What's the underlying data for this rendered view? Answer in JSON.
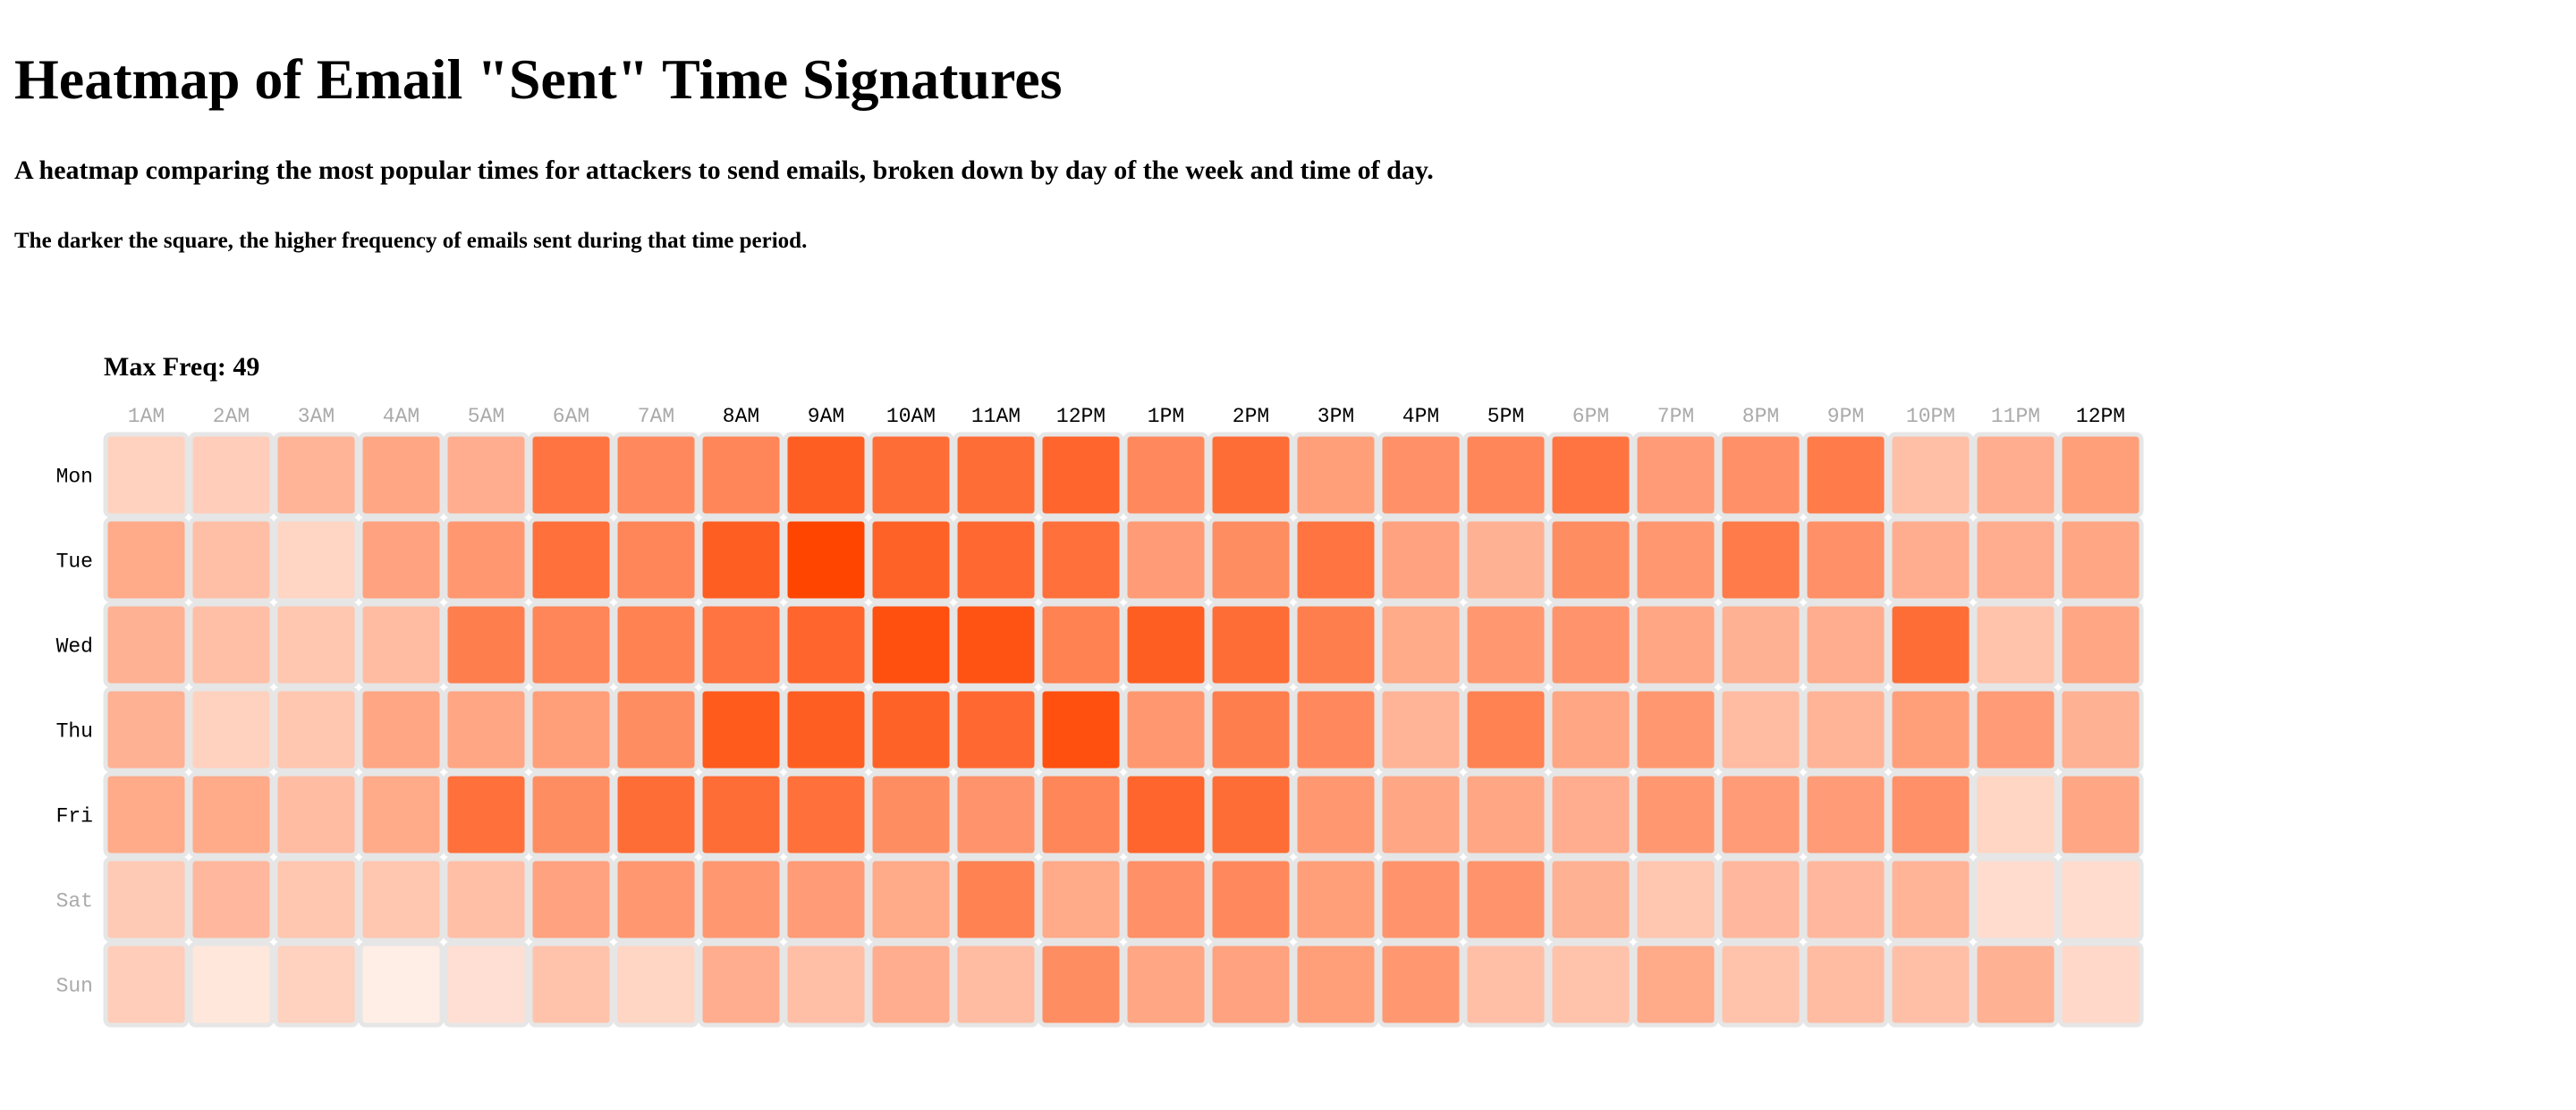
{
  "page": {
    "title": "Heatmap of Email \"Sent\" Time Signatures",
    "subtitle": "A heatmap comparing the most popular times for attackers to send emails, broken down by day of the week and time of day.",
    "note": "The darker the square, the higher frequency of emails sent during that time period.",
    "max_freq_label": "Max Freq: 49"
  },
  "chart_data": {
    "type": "heatmap",
    "x_categories": [
      "1AM",
      "2AM",
      "3AM",
      "4AM",
      "5AM",
      "6AM",
      "7AM",
      "8AM",
      "9AM",
      "10AM",
      "11AM",
      "12PM",
      "1PM",
      "2PM",
      "3PM",
      "4PM",
      "5PM",
      "6PM",
      "7PM",
      "8PM",
      "9PM",
      "10PM",
      "11PM",
      "12PM"
    ],
    "y_categories": [
      "Mon",
      "Tue",
      "Wed",
      "Thu",
      "Fri",
      "Sat",
      "Sun"
    ],
    "x_highlighted": [
      "8AM",
      "9AM",
      "10AM",
      "11AM",
      "12PM",
      "1PM",
      "2PM",
      "3PM",
      "4PM",
      "5PM"
    ],
    "y_highlighted": [
      "Mon",
      "Tue",
      "Wed",
      "Thu",
      "Fri"
    ],
    "max_value": 49,
    "values": [
      [
        10,
        11,
        18,
        22,
        20,
        36,
        30,
        31,
        42,
        38,
        38,
        40,
        30,
        38,
        24,
        28,
        31,
        36,
        25,
        28,
        34,
        15,
        20,
        24
      ],
      [
        21,
        15,
        9,
        23,
        26,
        37,
        31,
        42,
        49,
        41,
        39,
        37,
        25,
        29,
        36,
        23,
        19,
        29,
        26,
        34,
        28,
        20,
        20,
        22
      ],
      [
        19,
        15,
        13,
        16,
        33,
        31,
        32,
        36,
        40,
        46,
        45,
        32,
        42,
        38,
        33,
        21,
        26,
        27,
        22,
        19,
        20,
        38,
        14,
        22
      ],
      [
        19,
        10,
        13,
        22,
        22,
        24,
        29,
        43,
        42,
        41,
        39,
        46,
        26,
        33,
        30,
        18,
        32,
        22,
        26,
        16,
        18,
        24,
        25,
        19
      ],
      [
        21,
        21,
        16,
        21,
        37,
        29,
        38,
        38,
        37,
        29,
        27,
        31,
        40,
        38,
        26,
        22,
        22,
        20,
        26,
        25,
        25,
        28,
        9,
        22
      ],
      [
        12,
        17,
        13,
        13,
        15,
        23,
        26,
        26,
        25,
        21,
        32,
        21,
        28,
        30,
        24,
        27,
        27,
        19,
        13,
        17,
        17,
        18,
        7,
        7
      ],
      [
        11,
        4,
        10,
        2,
        6,
        14,
        9,
        20,
        15,
        20,
        16,
        29,
        22,
        23,
        24,
        26,
        15,
        14,
        21,
        14,
        16,
        15,
        19,
        8
      ]
    ],
    "color_low": "#fff5f0",
    "color_high": "#ff4500",
    "cell_border_color": "#e6e6e6",
    "highlight_label_color": "#000000",
    "muted_label_color": "#aaaaaa"
  }
}
